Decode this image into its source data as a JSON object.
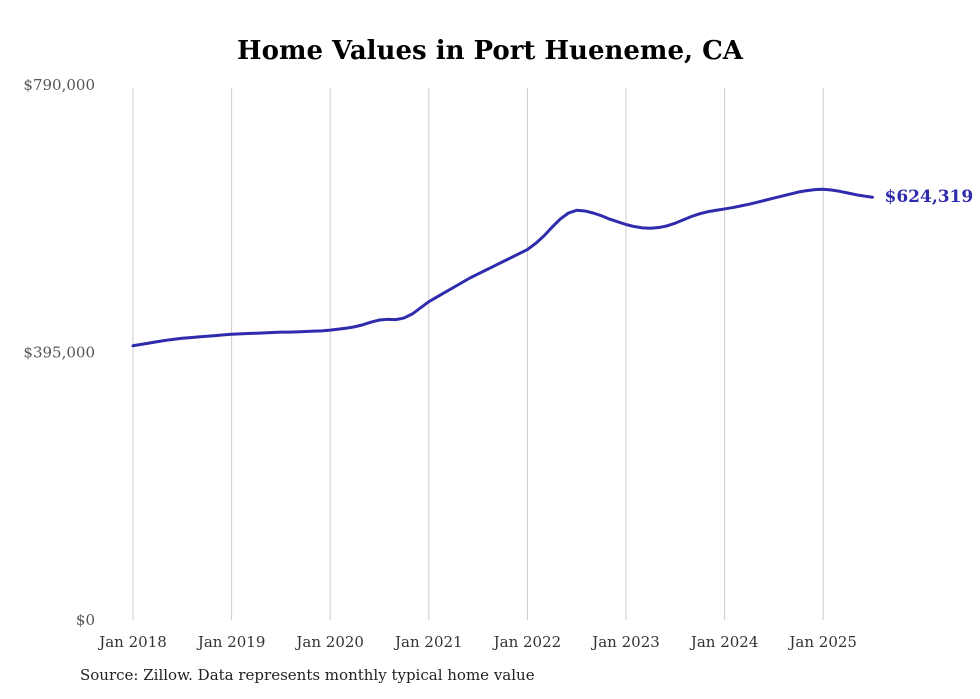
{
  "title": "Home Values in Port Hueneme, CA",
  "end_label": "$624,319",
  "source_note": "Source: Zillow. Data represents monthly typical home value",
  "colors": {
    "line": "#2f2bad",
    "grid": "#cccccc",
    "y_tick_text": "#555555",
    "x_tick_text": "#333333",
    "source_text": "#222222",
    "title_text": "#000000"
  },
  "chart_data": {
    "type": "line",
    "title": "Home Values in Port Hueneme, CA",
    "xlabel": "",
    "ylabel": "",
    "x_start_month": "Jan 2018",
    "x_end_month": "Jul 2025",
    "x_tick_labels": [
      "Jan 2018",
      "Jan 2019",
      "Jan 2020",
      "Jan 2021",
      "Jan 2022",
      "Jan 2023",
      "Jan 2024",
      "Jan 2025"
    ],
    "y_tick_labels": [
      "$0",
      "$395,000",
      "$790,000"
    ],
    "y_ticks": [
      0,
      395000,
      790000
    ],
    "ylim": [
      0,
      790000
    ],
    "grid": "vertical-only",
    "legend": "none",
    "annotation": {
      "text": "$624,319",
      "position": "end-of-line"
    },
    "series": [
      {
        "name": "Typical home value",
        "cadence": "monthly",
        "end_value": 624319,
        "values": [
          405000,
          407000,
          409000,
          411000,
          413000,
          414500,
          416000,
          417000,
          418000,
          419000,
          420000,
          421000,
          422000,
          422500,
          423000,
          423500,
          424000,
          424500,
          425000,
          425000,
          425500,
          426000,
          426500,
          427000,
          428000,
          429500,
          431000,
          433000,
          436000,
          440000,
          443000,
          444000,
          443500,
          446000,
          452000,
          461000,
          470000,
          477000,
          484000,
          491000,
          498000,
          505000,
          511000,
          517000,
          523000,
          529000,
          535000,
          541000,
          547000,
          556000,
          567000,
          580000,
          592000,
          601000,
          605000,
          604000,
          601000,
          597000,
          592000,
          588000,
          584000,
          581000,
          579000,
          578500,
          579500,
          582000,
          586000,
          591000,
          596000,
          600000,
          603000,
          605000,
          607000,
          609000,
          611500,
          614000,
          617000,
          620000,
          623000,
          626000,
          629000,
          632000,
          634000,
          635500,
          636000,
          635000,
          633000,
          630500,
          628000,
          626000,
          624319
        ]
      }
    ]
  }
}
